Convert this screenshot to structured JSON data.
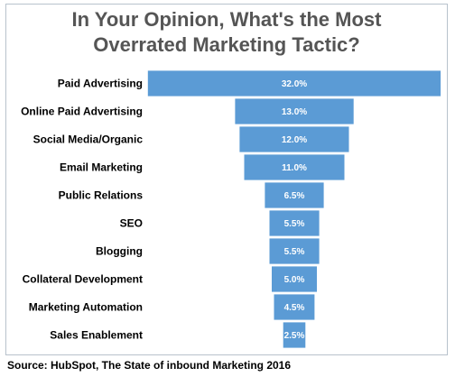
{
  "chart_data": {
    "type": "bar",
    "orientation": "horizontal-centered",
    "title_line1": "In Your Opinion, What's the Most",
    "title_line2": "Overrated Marketing Tactic?",
    "categories": [
      "Paid Advertising",
      "Online Paid Advertising",
      "Social Media/Organic",
      "Email Marketing",
      "Public Relations",
      "SEO",
      "Blogging",
      "Collateral Development",
      "Marketing Automation",
      "Sales Enablement"
    ],
    "values": [
      32.0,
      13.0,
      12.0,
      11.0,
      6.5,
      5.5,
      5.5,
      5.0,
      4.5,
      2.5
    ],
    "value_labels": [
      "32.0%",
      "13.0%",
      "12.0%",
      "11.0%",
      "6.5%",
      "5.5%",
      "5.5%",
      "5.0%",
      "4.5%",
      "2.5%"
    ],
    "bar_color": "#5b9bd5",
    "grid": false,
    "legend": "none"
  },
  "source": "Source: HubSpot, The State of inbound Marketing 2016"
}
